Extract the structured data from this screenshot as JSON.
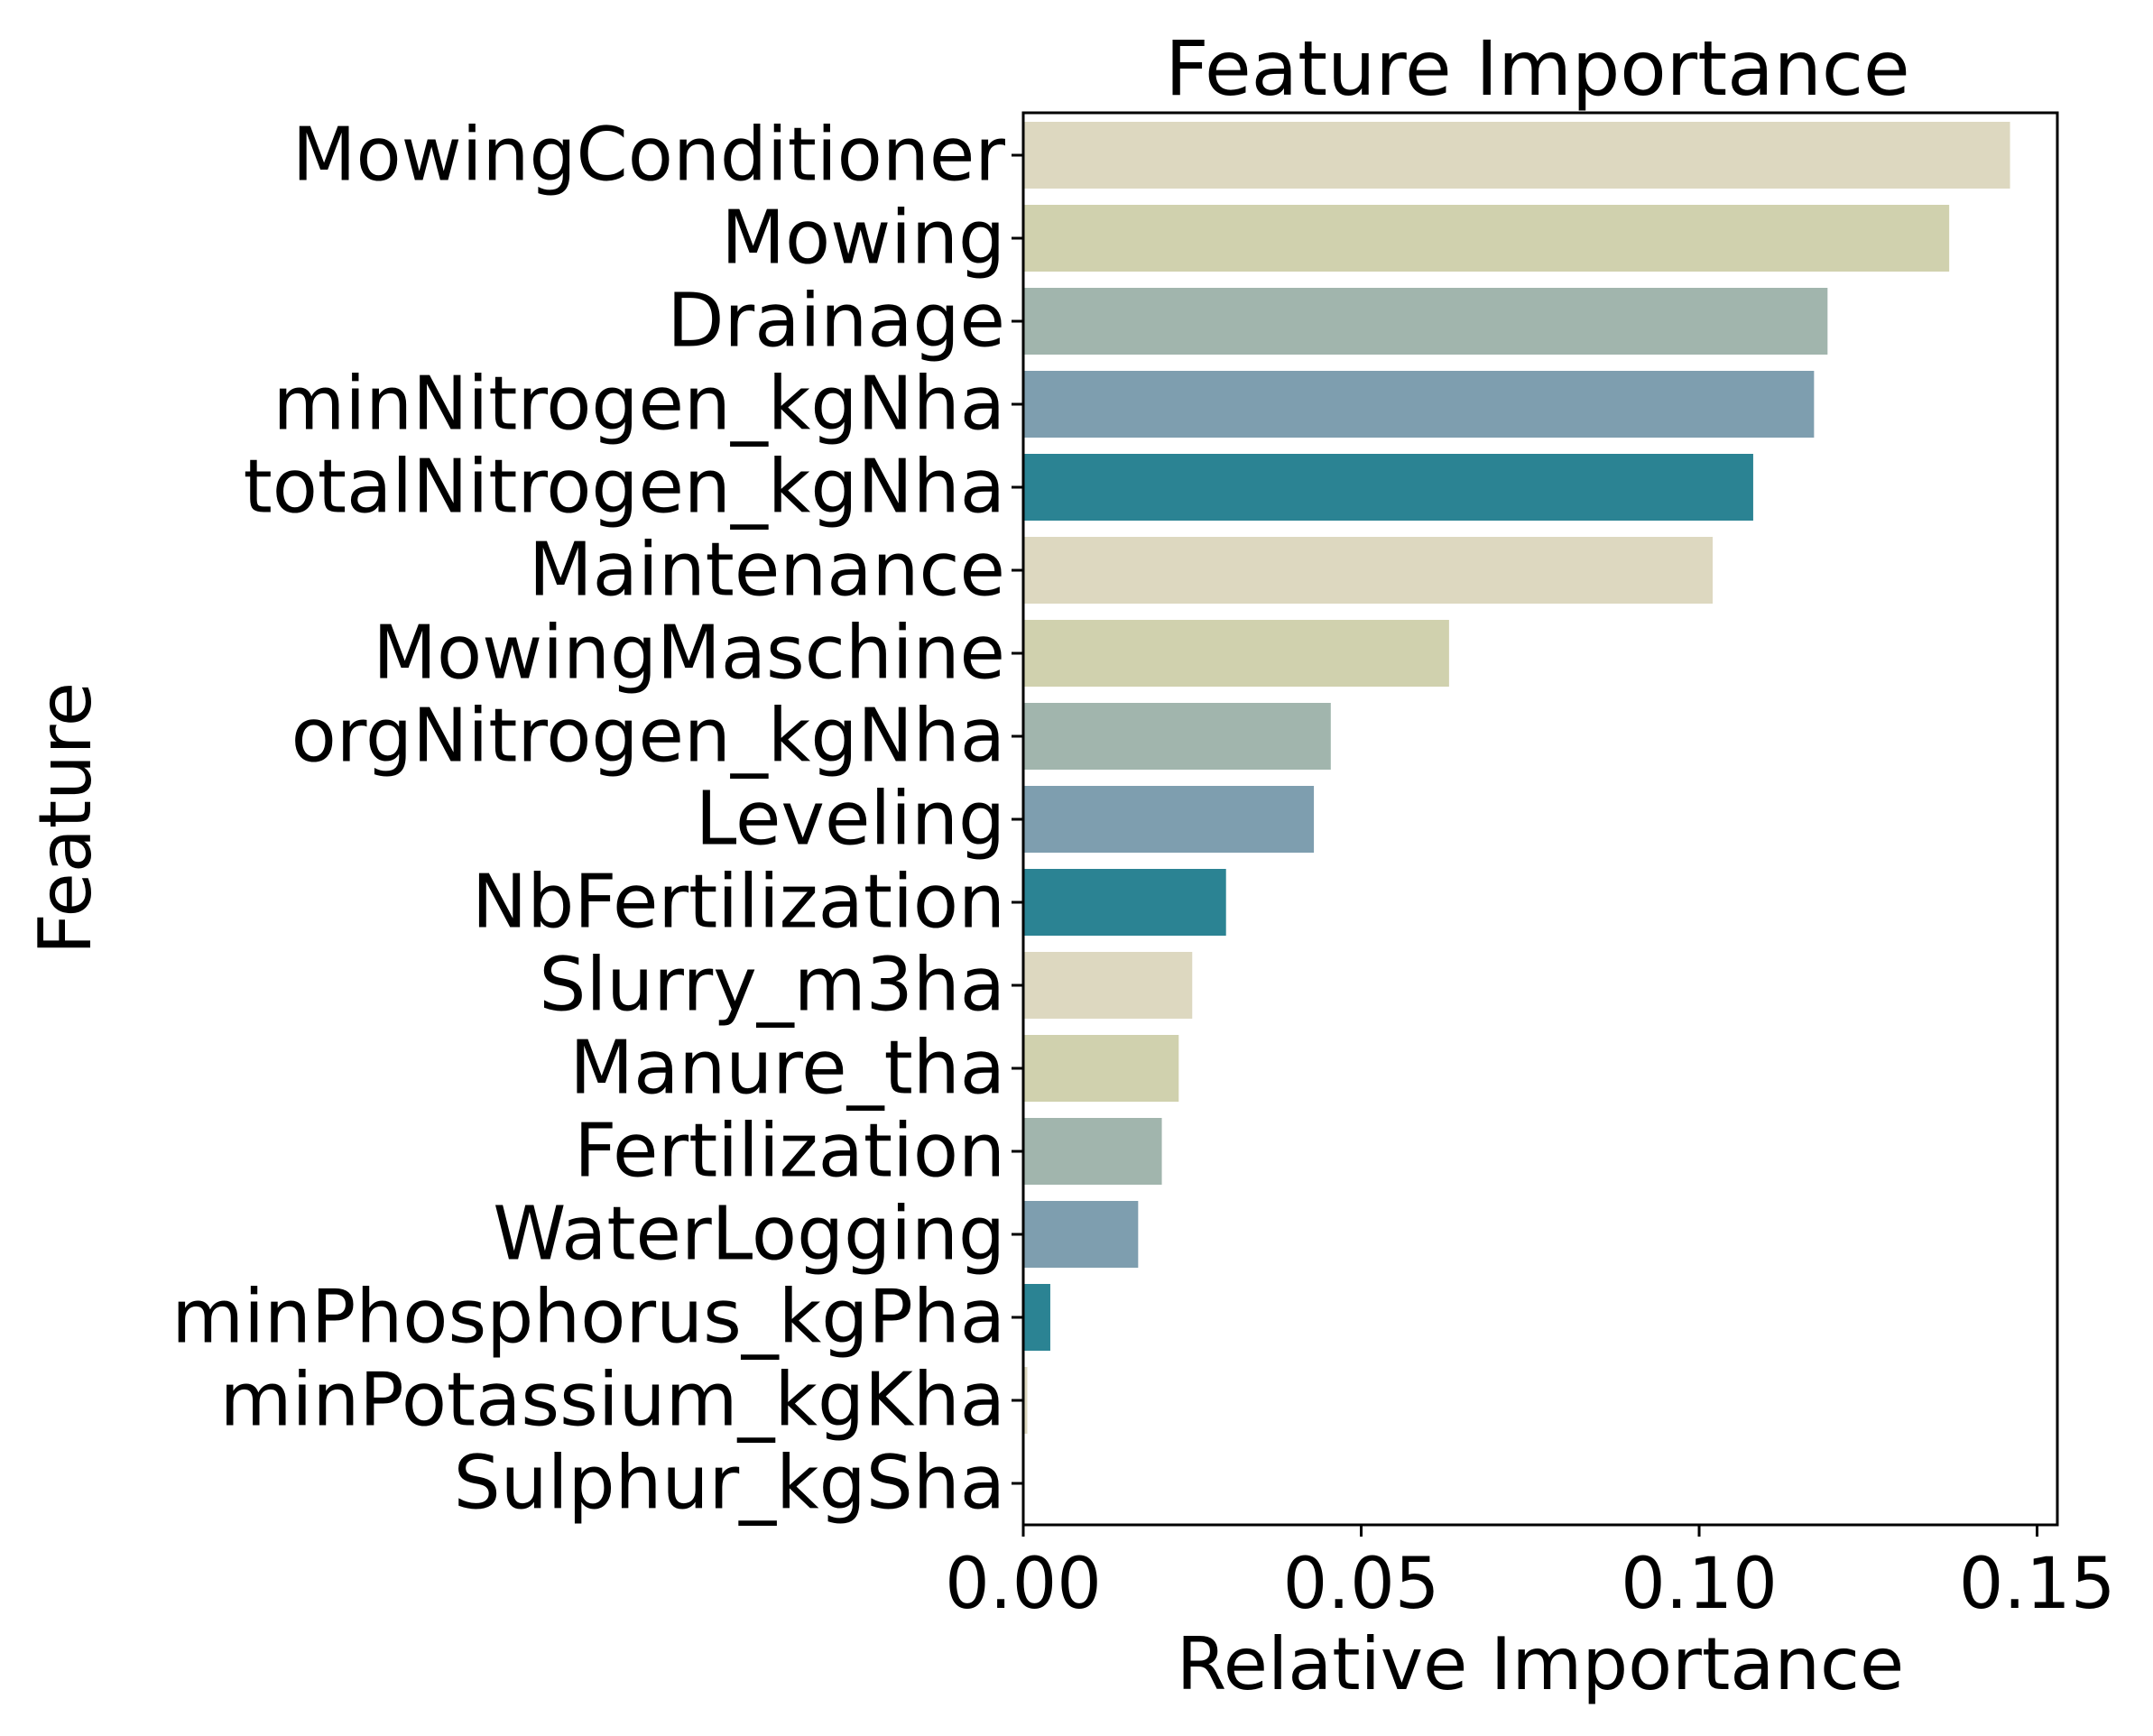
{
  "chart_data": {
    "type": "bar",
    "orientation": "horizontal",
    "title": "Feature Importance",
    "xlabel": "Relative Importance",
    "ylabel": "Feature",
    "xlim": [
      0,
      0.153
    ],
    "xticks": [
      "0.00",
      "0.05",
      "0.10",
      "0.15"
    ],
    "xtick_values": [
      0,
      0.05,
      0.1,
      0.15
    ],
    "grid": false,
    "legend": "none",
    "palette": [
      "#ddd8c0",
      "#d0d1ae",
      "#a1b5ad",
      "#7e9eaf",
      "#2b8393"
    ],
    "categories": [
      "MowingConditioner",
      "Mowing",
      "Drainage",
      "minNitrogen_kgNha",
      "totalNitrogen_kgNha",
      "Maintenance",
      "MowingMaschine",
      "orgNitrogen_kgNha",
      "Leveling",
      "NbFertilization",
      "Slurry_m3ha",
      "Manure_tha",
      "Fertilization",
      "WaterLogging",
      "minPhosphorus_kgPha",
      "minPotassium_kgKha",
      "Sulphur_kgSha"
    ],
    "values": [
      0.146,
      0.137,
      0.119,
      0.117,
      0.108,
      0.102,
      0.063,
      0.0455,
      0.043,
      0.03,
      0.025,
      0.023,
      0.0205,
      0.017,
      0.004,
      0.0006,
      0.0
    ]
  }
}
